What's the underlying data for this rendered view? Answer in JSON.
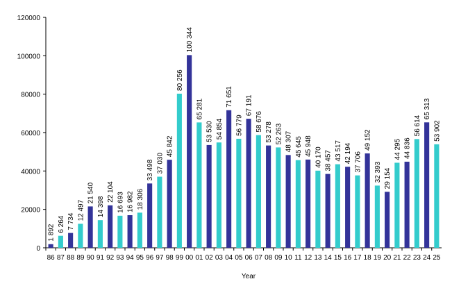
{
  "chart_data": {
    "type": "bar",
    "xlabel": "Year",
    "categories": [
      "86",
      "87",
      "88",
      "89",
      "90",
      "91",
      "92",
      "93",
      "94",
      "95",
      "96",
      "97",
      "98",
      "99",
      "00",
      "01",
      "02",
      "03",
      "04",
      "05",
      "06",
      "07",
      "08",
      "09",
      "10",
      "11",
      "12",
      "13",
      "14",
      "15",
      "16",
      "17",
      "18",
      "19",
      "20",
      "21",
      "22",
      "23",
      "24",
      "25"
    ],
    "values": [
      1892,
      6264,
      7734,
      12497,
      21540,
      14398,
      22104,
      16693,
      16982,
      18306,
      33498,
      37030,
      45842,
      80256,
      100344,
      65281,
      53530,
      54854,
      71651,
      56779,
      67191,
      58676,
      53278,
      52263,
      48307,
      45645,
      45948,
      40170,
      38457,
      43517,
      42194,
      37706,
      49152,
      32393,
      29154,
      44295,
      44836,
      56614,
      65313,
      53902
    ],
    "value_labels": [
      "1 892",
      "6 264",
      "7 734",
      "12 497",
      "21 540",
      "14 398",
      "22 104",
      "16 693",
      "16 982",
      "18 306",
      "33 498",
      "37 030",
      "45 842",
      "80 256",
      "100 344",
      "65 281",
      "53 530",
      "54 854",
      "71 651",
      "56 779",
      "67 191",
      "58 676",
      "53 278",
      "52 263",
      "48 307",
      "45 645",
      "45 948",
      "40 170",
      "38 457",
      "43 517",
      "42 194",
      "37 706",
      "49 152",
      "32 393",
      "29 154",
      "44 295",
      "44 836",
      "56 614",
      "65 313",
      "53 902"
    ],
    "colors": [
      "#333399",
      "#33cccc"
    ],
    "ylim": [
      0,
      120000
    ],
    "yticks": [
      0,
      20000,
      40000,
      60000,
      80000,
      100000,
      120000
    ]
  }
}
